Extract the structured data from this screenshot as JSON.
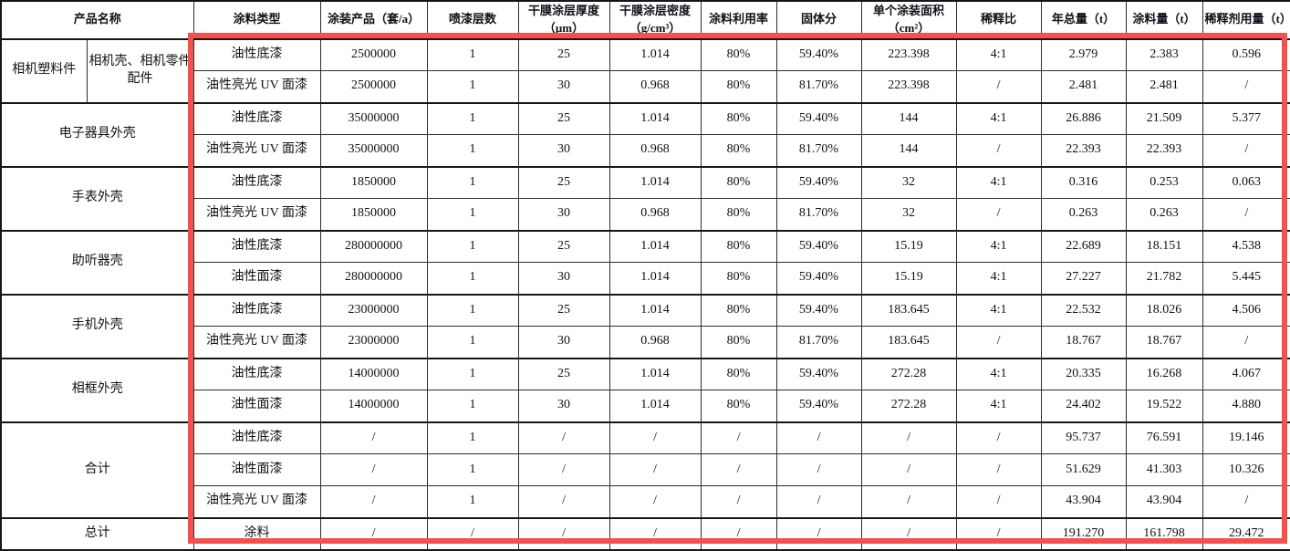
{
  "colors": {
    "highlight_border": "#f4514e",
    "table_border": "#2e2e2e",
    "text": "#101019",
    "background": "#ffffff"
  },
  "highlight_box": {
    "shape": "red-rectangle-outline"
  },
  "table": {
    "header": [
      {
        "label": "产品名称",
        "colspan": 2
      },
      {
        "label": "涂料类型"
      },
      {
        "label": "涂装产品（套/a）"
      },
      {
        "label": "喷漆层数"
      },
      {
        "label": "干膜涂层厚度（μm）"
      },
      {
        "label": "干膜涂层密度（g/cm³）"
      },
      {
        "label": "涂料利用率"
      },
      {
        "label": "固体分"
      },
      {
        "label": "单个涂装面积（cm²）"
      },
      {
        "label": "稀释比"
      },
      {
        "label": "年总量（t）"
      },
      {
        "label": "涂料量（t）"
      },
      {
        "label": "稀释剂用量（t）"
      }
    ],
    "rows": [
      [
        {
          "text": "相机塑料件",
          "rowspan": 2,
          "name": "product-name-cell"
        },
        {
          "text": "相机壳、相机零件配件",
          "rowspan": 2,
          "name": "product-name-cell"
        },
        "油性底漆",
        "2500000",
        "1",
        "25",
        "1.014",
        "80%",
        "59.40%",
        "223.398",
        "4:1",
        "2.979",
        "2.383",
        "0.596"
      ],
      [
        "油性亮光 UV 面漆",
        "2500000",
        "1",
        "30",
        "0.968",
        "80%",
        "81.70%",
        "223.398",
        "/",
        "2.481",
        "2.481",
        "/"
      ],
      [
        {
          "text": "电子器具外壳",
          "rowspan": 2,
          "colspan": 2,
          "name": "product-name-cell"
        },
        "油性底漆",
        "35000000",
        "1",
        "25",
        "1.014",
        "80%",
        "59.40%",
        "144",
        "4:1",
        "26.886",
        "21.509",
        "5.377"
      ],
      [
        "油性亮光 UV 面漆",
        "35000000",
        "1",
        "30",
        "0.968",
        "80%",
        "81.70%",
        "144",
        "/",
        "22.393",
        "22.393",
        "/"
      ],
      [
        {
          "text": "手表外壳",
          "rowspan": 2,
          "colspan": 2,
          "name": "product-name-cell"
        },
        "油性底漆",
        "1850000",
        "1",
        "25",
        "1.014",
        "80%",
        "59.40%",
        "32",
        "4:1",
        "0.316",
        "0.253",
        "0.063"
      ],
      [
        "油性亮光 UV 面漆",
        "1850000",
        "1",
        "30",
        "0.968",
        "80%",
        "81.70%",
        "32",
        "/",
        "0.263",
        "0.263",
        "/"
      ],
      [
        {
          "text": "助听器壳",
          "rowspan": 2,
          "colspan": 2,
          "name": "product-name-cell"
        },
        "油性底漆",
        "280000000",
        "1",
        "25",
        "1.014",
        "80%",
        "59.40%",
        "15.19",
        "4:1",
        "22.689",
        "18.151",
        "4.538"
      ],
      [
        "油性面漆",
        "280000000",
        "1",
        "30",
        "1.014",
        "80%",
        "59.40%",
        "15.19",
        "4:1",
        "27.227",
        "21.782",
        "5.445"
      ],
      [
        {
          "text": "手机外壳",
          "rowspan": 2,
          "colspan": 2,
          "name": "product-name-cell"
        },
        "油性底漆",
        "23000000",
        "1",
        "25",
        "1.014",
        "80%",
        "59.40%",
        "183.645",
        "4:1",
        "22.532",
        "18.026",
        "4.506"
      ],
      [
        "油性亮光 UV 面漆",
        "23000000",
        "1",
        "30",
        "0.968",
        "80%",
        "81.70%",
        "183.645",
        "/",
        "18.767",
        "18.767",
        "/"
      ],
      [
        {
          "text": "相框外壳",
          "rowspan": 2,
          "colspan": 2,
          "name": "product-name-cell"
        },
        "油性底漆",
        "14000000",
        "1",
        "25",
        "1.014",
        "80%",
        "59.40%",
        "272.28",
        "4:1",
        "20.335",
        "16.268",
        "4.067"
      ],
      [
        "油性面漆",
        "14000000",
        "1",
        "30",
        "1.014",
        "80%",
        "59.40%",
        "272.28",
        "4:1",
        "24.402",
        "19.522",
        "4.880"
      ],
      [
        {
          "text": "合计",
          "rowspan": 3,
          "colspan": 2,
          "name": "summary-label-cell"
        },
        "油性底漆",
        "/",
        "1",
        "/",
        "/",
        "/",
        "/",
        "/",
        "/",
        "95.737",
        "76.591",
        "19.146"
      ],
      [
        "油性面漆",
        "/",
        "1",
        "/",
        "/",
        "/",
        "/",
        "/",
        "/",
        "51.629",
        "41.303",
        "10.326"
      ],
      [
        "油性亮光 UV 面漆",
        "/",
        "1",
        "/",
        "/",
        "/",
        "/",
        "/",
        "/",
        "43.904",
        "43.904",
        "/"
      ],
      [
        {
          "text": "总计",
          "colspan": 2,
          "name": "summary-label-cell"
        },
        "涂料",
        "/",
        "/",
        "/",
        "/",
        "/",
        "/",
        "/",
        "/",
        "191.270",
        "161.798",
        "29.472"
      ]
    ]
  }
}
